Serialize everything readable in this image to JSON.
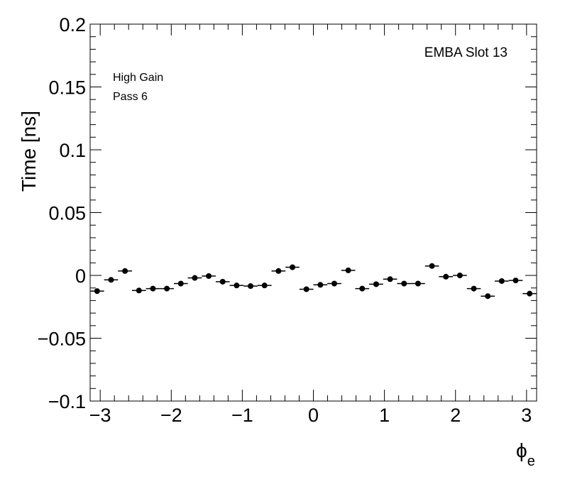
{
  "chart_data": {
    "type": "scatter",
    "ylabel": "Time [ns]",
    "xlabel_symbol": "ϕ",
    "xlabel_subscript": "e",
    "xlim": [
      -3.14159,
      3.14159
    ],
    "ylim": [
      -0.1,
      0.2
    ],
    "x_ticks": [
      -3,
      -2,
      -1,
      0,
      1,
      2,
      3
    ],
    "x_tick_labels": [
      "−3",
      "−2",
      "−1",
      "0",
      "1",
      "2",
      "3"
    ],
    "y_ticks": [
      -0.1,
      -0.05,
      0,
      0.05,
      0.1,
      0.15,
      0.2
    ],
    "y_tick_labels": [
      "−0.1",
      "−0.05",
      "0",
      "0.05",
      "0.1",
      "0.15",
      "0.2"
    ],
    "annotations": {
      "top_right": "EMBA Slot 13",
      "line1": "High Gain",
      "line2": "Pass 6"
    },
    "grid": false,
    "series": [
      {
        "x": [
          -3.0434,
          -2.8471,
          -2.6507,
          -2.4544,
          -2.258,
          -2.0617,
          -1.8653,
          -1.669,
          -1.4726,
          -1.2763,
          -1.0799,
          -0.8836,
          -0.6872,
          -0.4909,
          -0.2945,
          -0.0982,
          0.0982,
          0.2945,
          0.4909,
          0.6872,
          0.8836,
          1.0799,
          1.2763,
          1.4726,
          1.669,
          1.8653,
          2.0617,
          2.258,
          2.4544,
          2.6507,
          2.8471,
          3.0434
        ],
        "y": [
          -0.0125,
          -0.0035,
          0.0035,
          -0.012,
          -0.0105,
          -0.0105,
          -0.0065,
          -0.002,
          -0.0005,
          -0.005,
          -0.008,
          -0.0085,
          -0.008,
          0.0035,
          0.0065,
          -0.011,
          -0.0075,
          -0.0065,
          0.004,
          -0.0105,
          -0.007,
          -0.003,
          -0.0065,
          -0.0065,
          0.0075,
          -0.001,
          0.0,
          -0.0105,
          -0.0165,
          -0.0045,
          -0.004,
          -0.0145
        ]
      }
    ]
  }
}
